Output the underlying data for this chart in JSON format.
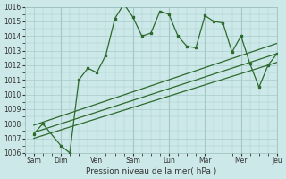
{
  "bg_color": "#cce8e8",
  "grid_color": "#aacccc",
  "line_color": "#2d6a2d",
  "xlabel": "Pression niveau de la mer( hPa )",
  "ylim": [
    1006,
    1016
  ],
  "xlim": [
    0,
    14
  ],
  "x_ticks_pos": [
    0.5,
    2,
    4,
    6,
    8,
    10,
    12,
    14
  ],
  "x_ticks_labels": [
    "Sam",
    "Dim",
    "Ven",
    "Sam",
    "Lun",
    "Mar",
    "Mer",
    "Jeu"
  ],
  "main_x": [
    0.5,
    1.0,
    2.0,
    2.5,
    3.0,
    3.5,
    4.0,
    4.5,
    5.0,
    5.5,
    6.0,
    6.5,
    7.0,
    7.5,
    8.0,
    8.5,
    9.0,
    9.5,
    10.0,
    10.5,
    11.0,
    11.5,
    12.0,
    12.5,
    13.0,
    13.5,
    14.0
  ],
  "main_y": [
    1007.3,
    1008.0,
    1006.5,
    1006.0,
    1011.0,
    1011.8,
    1011.5,
    1012.7,
    1015.2,
    1016.2,
    1015.3,
    1014.0,
    1014.2,
    1015.7,
    1015.5,
    1014.0,
    1013.3,
    1013.2,
    1015.4,
    1015.0,
    1014.9,
    1012.9,
    1014.0,
    1012.1,
    1010.5,
    1012.0,
    1012.8
  ],
  "trend1_x": [
    0.5,
    14
  ],
  "trend1_y": [
    1007.0,
    1012.2
  ],
  "trend2_x": [
    0.5,
    14
  ],
  "trend2_y": [
    1007.4,
    1012.8
  ],
  "trend3_x": [
    0.5,
    14
  ],
  "trend3_y": [
    1007.9,
    1013.5
  ],
  "vlines_x": [
    2,
    4,
    6,
    8,
    10,
    12,
    14
  ]
}
